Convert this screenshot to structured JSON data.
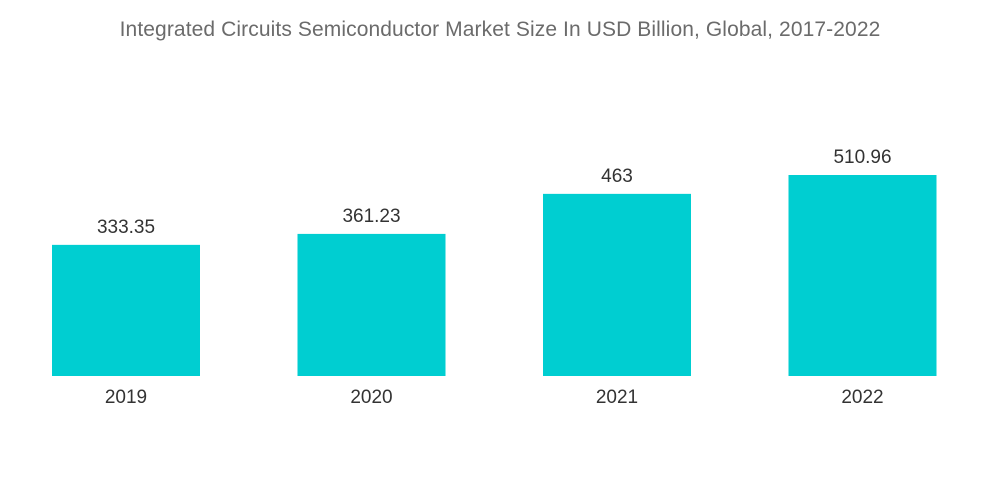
{
  "chart_data": {
    "type": "bar",
    "title": "Integrated Circuits Semiconductor Market Size In USD Billion, Global, 2017-2022",
    "categories": [
      "2019",
      "2020",
      "2021",
      "2022"
    ],
    "values": [
      333.35,
      361.23,
      463,
      510.96
    ],
    "value_labels": [
      "333.35",
      "361.23",
      "463",
      "510.96"
    ],
    "xlabel": "",
    "ylabel": "",
    "ylim": [
      0,
      510.96
    ],
    "grid": false,
    "legend": "none",
    "bar_color": "#00ced1"
  }
}
